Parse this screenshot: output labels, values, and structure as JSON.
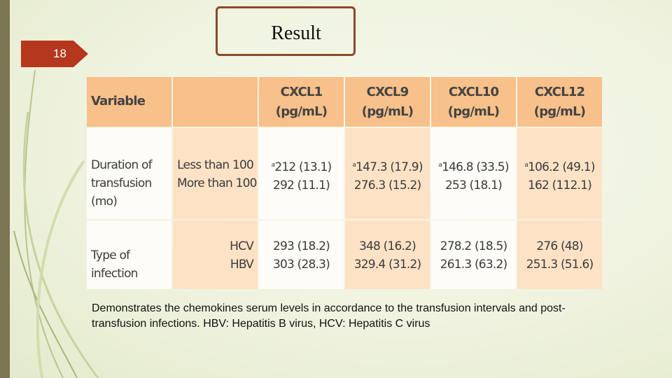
{
  "slide_number": "18",
  "title": "Result",
  "table": {
    "header": {
      "variable": "Variable",
      "columns": [
        "CXCL1 (pg/mL)",
        "CXCL9 (pg/mL)",
        "CXCL10 (pg/mL)",
        "CXCL12 (pg/mL)"
      ]
    },
    "rows": [
      {
        "variable": "Duration of transfusion (mo)",
        "groups": [
          "Less than 100",
          "More than 100"
        ],
        "markers": [
          "a",
          "a",
          "a",
          "a"
        ],
        "values": [
          [
            "212 (13.1)",
            "292 (11.1)"
          ],
          [
            "147.3 (17.9)",
            "276.3 (15.2)"
          ],
          [
            "146.8 (33.5)",
            "253 (18.1)"
          ],
          [
            "106.2 (49.1)",
            "162 (112.1)"
          ]
        ]
      },
      {
        "variable": "Type of infection",
        "groups": [
          "HCV",
          "HBV"
        ],
        "values": [
          [
            "293 (18.2)",
            "303 (28.3)"
          ],
          [
            "348 (16.2)",
            "329.4 (31.2)"
          ],
          [
            "278.2 (18.5)",
            "261.3 (63.2)"
          ],
          [
            "276 (48)",
            "251.3 (51.6)"
          ]
        ]
      }
    ]
  },
  "caption": "Demonstrates the chemokines serum levels in accordance to the transfusion intervals and post-transfusion infections. HBV: Hepatitis B virus, HCV: Hepatitis C virus"
}
